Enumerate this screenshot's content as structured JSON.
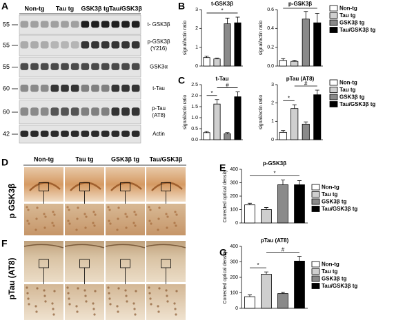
{
  "panels": [
    "A",
    "B",
    "C",
    "D",
    "E",
    "F",
    "G"
  ],
  "blot": {
    "columns": [
      "Non-tg",
      "Tau tg",
      "GSK3β tg",
      "Tau/GSK3β"
    ],
    "rows": [
      {
        "kda": "55",
        "label": "t- GSK3β"
      },
      {
        "kda": "55",
        "label": "p-GSK3β",
        "sublabel": "(Y216)"
      },
      {
        "kda": "55",
        "label": "GSK3α"
      },
      {
        "kda": "60",
        "label": "t-Tau"
      },
      {
        "kda": "60",
        "label": "p-Tau",
        "sublabel": "(AT8)"
      },
      {
        "kda": "42",
        "label": "Actin"
      }
    ]
  },
  "histology": {
    "columns": [
      "Non-tg",
      "Tau tg",
      "GSK3β tg",
      "Tau/GSK3β"
    ],
    "rows": [
      "p GSK3β",
      "pTau (AT8)"
    ]
  },
  "chart_data": [
    {
      "type": "bar",
      "title": "t-GSK3β",
      "ylabel": "signal/actin ratio",
      "categories": [
        "Non-tg",
        "Tau tg",
        "GSK3β tg",
        "Tau/GSK3β tg"
      ],
      "colors": [
        "#ffffff",
        "#cfcfcf",
        "#8a8a8a",
        "#000000"
      ],
      "values": [
        0.45,
        0.38,
        2.25,
        2.3
      ],
      "errors": [
        0.08,
        0.05,
        0.3,
        0.3
      ],
      "ylim": [
        0,
        3
      ],
      "yticks": [
        0,
        1,
        2,
        3
      ],
      "legend": false,
      "annotations": [
        {
          "text": "*",
          "from": "Non-tg",
          "to": "Tau/GSK3β tg"
        }
      ]
    },
    {
      "type": "bar",
      "title": "p-GSK3β",
      "ylabel": "signal/actin ratio",
      "categories": [
        "Non-tg",
        "Tau tg",
        "GSK3β tg",
        "Tau/GSK3β tg"
      ],
      "colors": [
        "#ffffff",
        "#cfcfcf",
        "#8a8a8a",
        "#000000"
      ],
      "values": [
        0.06,
        0.05,
        0.5,
        0.46
      ],
      "errors": [
        0.02,
        0.01,
        0.08,
        0.1
      ],
      "ylim": [
        0,
        0.6
      ],
      "yticks": [
        {
          "value": 0,
          "label": "0.0"
        },
        0.2,
        0.4,
        0.6
      ],
      "legend": true,
      "annotations": [
        {
          "text": "*",
          "from": "Non-tg",
          "to": "Tau/GSK3β tg"
        }
      ]
    },
    {
      "type": "bar",
      "title": "t-Tau",
      "ylabel": "signal/actin ratio",
      "categories": [
        "Non-tg",
        "Tau tg",
        "GSK3β tg",
        "Tau/GSK3β tg"
      ],
      "colors": [
        "#ffffff",
        "#cfcfcf",
        "#8a8a8a",
        "#000000"
      ],
      "values": [
        0.32,
        1.62,
        0.27,
        1.95
      ],
      "errors": [
        0.05,
        0.2,
        0.05,
        0.22
      ],
      "ylim": [
        0,
        2.5
      ],
      "yticks": [
        {
          "value": 0,
          "label": "0.0"
        },
        0.5,
        {
          "value": 1,
          "label": "1.0"
        },
        1.5,
        {
          "value": 2,
          "label": "2.0"
        },
        2.5
      ],
      "legend": false,
      "annotations": [
        {
          "text": "*",
          "from": "Non-tg",
          "to": "Tau tg"
        },
        {
          "text": "#",
          "from": "Tau tg",
          "to": "Tau/GSK3β tg"
        }
      ]
    },
    {
      "type": "bar",
      "title": "pTau (AT8)",
      "ylabel": "signal/actin ratio",
      "categories": [
        "Non-tg",
        "Tau tg",
        "GSK3β tg",
        "Tau/GSK3β tg"
      ],
      "colors": [
        "#ffffff",
        "#cfcfcf",
        "#8a8a8a",
        "#000000"
      ],
      "values": [
        0.4,
        1.7,
        0.85,
        2.45
      ],
      "errors": [
        0.1,
        0.2,
        0.12,
        0.25
      ],
      "ylim": [
        0,
        3
      ],
      "yticks": [
        0,
        1,
        2,
        3
      ],
      "legend": true,
      "annotations": [
        {
          "text": "*",
          "from": "Non-tg",
          "to": "Tau tg"
        },
        {
          "text": "#",
          "from": "Tau tg",
          "to": "Tau/GSK3β tg"
        }
      ]
    },
    {
      "type": "bar",
      "title": "p-GSK3β",
      "ylabel": "Corrected optical density",
      "categories": [
        "Non-tg",
        "Tau tg",
        "GSK3β tg",
        "Tau/GSK3β tg"
      ],
      "colors": [
        "#ffffff",
        "#cfcfcf",
        "#8a8a8a",
        "#000000"
      ],
      "values": [
        135,
        100,
        285,
        285
      ],
      "errors": [
        12,
        15,
        35,
        30
      ],
      "ylim": [
        0,
        400
      ],
      "yticks": [
        0,
        100,
        200,
        300,
        400
      ],
      "legend": true,
      "annotations": [
        {
          "text": "*",
          "from": "Non-tg",
          "to": "Tau/GSK3β tg"
        }
      ]
    },
    {
      "type": "bar",
      "title": "pTau (AT8)",
      "ylabel": "Corrected optical density",
      "categories": [
        "Non-tg",
        "Tau tg",
        "GSK3β tg",
        "Tau/GSK3β tg"
      ],
      "colors": [
        "#ffffff",
        "#cfcfcf",
        "#8a8a8a",
        "#000000"
      ],
      "values": [
        75,
        220,
        95,
        305
      ],
      "errors": [
        12,
        15,
        10,
        30
      ],
      "ylim": [
        0,
        400
      ],
      "yticks": [
        0,
        100,
        200,
        300,
        400
      ],
      "legend": true,
      "annotations": [
        {
          "text": "*",
          "from": "Non-tg",
          "to": "Tau tg"
        },
        {
          "text": "#",
          "from": "Tau tg",
          "to": "Tau/GSK3β tg"
        }
      ]
    }
  ]
}
